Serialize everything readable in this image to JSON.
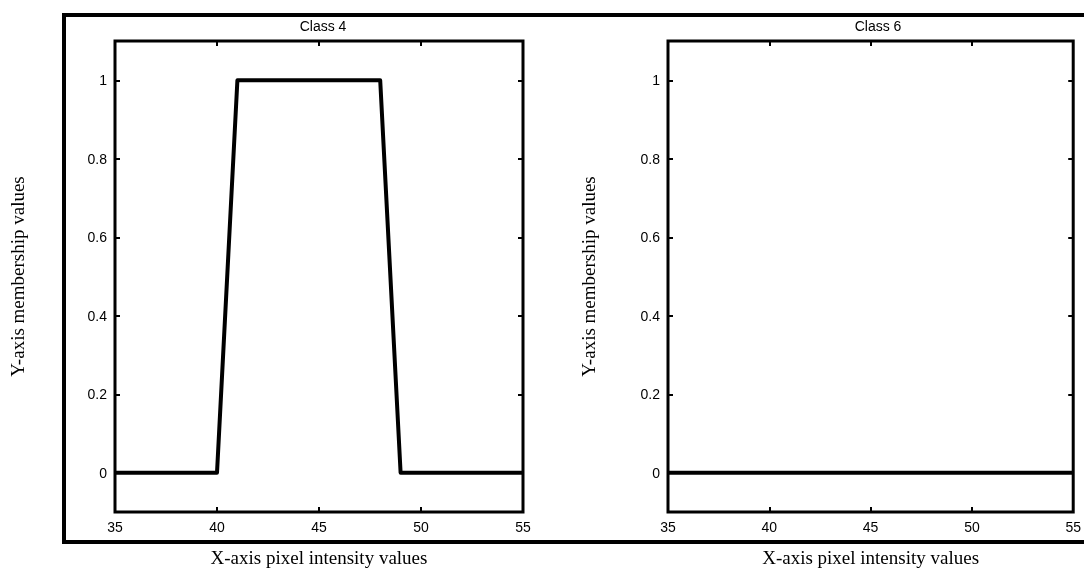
{
  "chart_data": [
    {
      "type": "line",
      "title": "Class 4",
      "xlabel": "X-axis pixel intensity values",
      "ylabel": "Y-axis membership values",
      "x": [
        35,
        40,
        41,
        48,
        49,
        55
      ],
      "series": [
        {
          "color": "#000000",
          "values": [
            0,
            0,
            1,
            1,
            0,
            0
          ]
        }
      ],
      "xlim": [
        35,
        55
      ],
      "xticks": [
        35,
        40,
        45,
        50,
        55
      ],
      "ylim": [
        -0.1,
        1.1
      ],
      "yticks": [
        0,
        0.2,
        0.4,
        0.6,
        0.8,
        1
      ],
      "grid": false
    },
    {
      "type": "line",
      "title": "Class 6",
      "xlabel": "X-axis pixel intensity values",
      "ylabel": "Y-axis membership values",
      "x": [
        35,
        55
      ],
      "series": [
        {
          "color": "#000000",
          "values": [
            0,
            0
          ]
        }
      ],
      "xlim": [
        35,
        55
      ],
      "xticks": [
        35,
        40,
        45,
        50,
        55
      ],
      "ylim": [
        -0.1,
        1.1
      ],
      "yticks": [
        0,
        0.2,
        0.4,
        0.6,
        0.8,
        1
      ],
      "grid": false
    }
  ]
}
